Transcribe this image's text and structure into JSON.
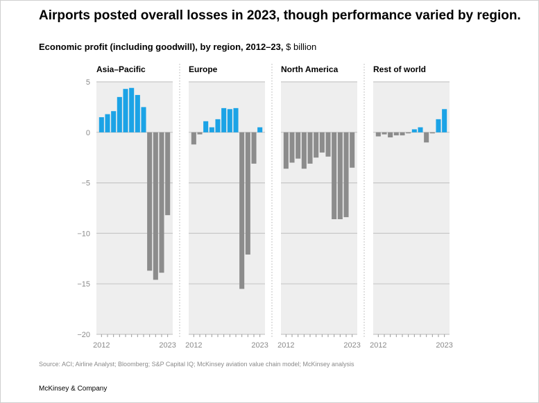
{
  "header": {
    "title": "Airports posted overall losses in 2023, though performance varied by region.",
    "subtitle_bold": "Economic profit (including goodwill), by region, 2012–23,",
    "subtitle_unit": "$ billion"
  },
  "footer": {
    "source": "Source: ACI; Airline Analyst; Bloomberg; S&P Capital IQ; McKinsey aviation value chain model; McKinsey analysis",
    "brand": "McKinsey & Company"
  },
  "colors": {
    "positive": "#1ba3e6",
    "negative": "#8c8c8c",
    "panel_bg": "#eeeeee",
    "gridline": "#c8c8c8",
    "zero_line": "#bdbdbd",
    "tick_text": "#8a8a8a"
  },
  "chart_data": {
    "type": "bar",
    "title": "Economic profit (including goodwill), by region, 2012–23",
    "ylabel": "$ billion",
    "ylim": [
      -20,
      5
    ],
    "yticks": [
      5,
      0,
      -5,
      -10,
      -15,
      -20
    ],
    "ytick_labels": [
      "5",
      "0",
      "−5",
      "−10",
      "−15",
      "−20"
    ],
    "categories": [
      "2012",
      "2013",
      "2014",
      "2015",
      "2016",
      "2017",
      "2018",
      "2019",
      "2020",
      "2021",
      "2022",
      "2023"
    ],
    "x_tick_labels": [
      "2012",
      "2023"
    ],
    "series": [
      {
        "name": "Asia–Pacific",
        "values": [
          1.5,
          1.8,
          2.1,
          3.5,
          4.3,
          4.4,
          3.7,
          2.5,
          -13.7,
          -14.6,
          -13.9,
          -8.2
        ]
      },
      {
        "name": "Europe",
        "values": [
          -1.2,
          -0.2,
          1.1,
          0.5,
          1.3,
          2.4,
          2.3,
          2.4,
          -15.5,
          -12.1,
          -3.1,
          0.5
        ]
      },
      {
        "name": "North America",
        "values": [
          -3.6,
          -3.0,
          -2.6,
          -3.6,
          -3.1,
          -2.5,
          -2.0,
          -2.4,
          -8.6,
          -8.6,
          -8.4,
          -3.5
        ]
      },
      {
        "name": "Rest of world",
        "values": [
          -0.4,
          -0.2,
          -0.5,
          -0.3,
          -0.3,
          -0.1,
          0.3,
          0.5,
          -1.0,
          -0.1,
          1.3,
          2.3
        ]
      }
    ]
  }
}
